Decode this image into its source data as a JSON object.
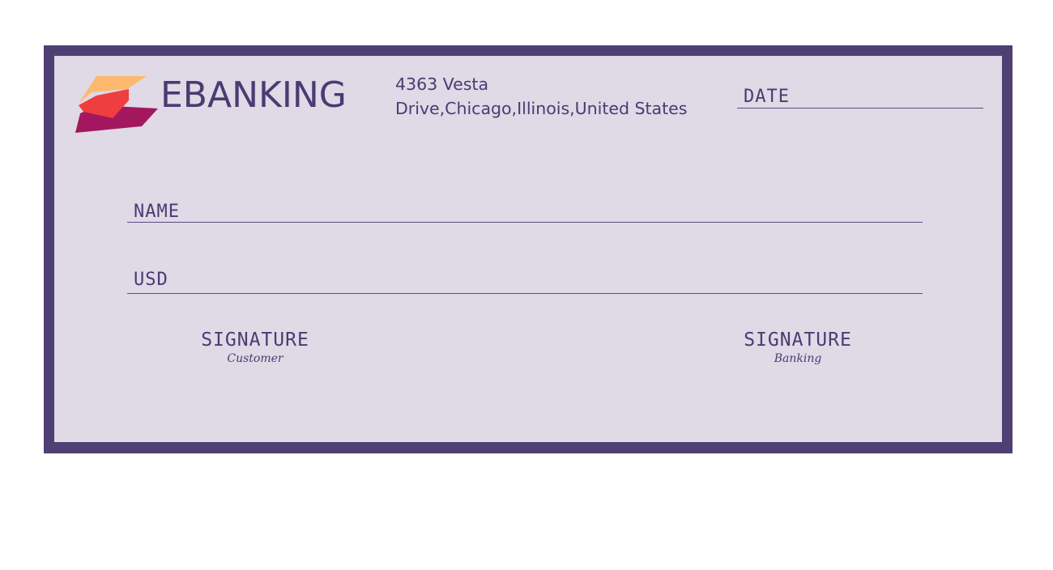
{
  "brand": {
    "name": "EBANKING",
    "colors": {
      "frame": "#4f4073",
      "paper": "#e0d9e6",
      "text": "#4a3b72",
      "logo_top": "#fdb96d",
      "logo_mid": "#ee3e3e",
      "logo_bottom": "#a3175f"
    },
    "logo_icon": "stacked-layers-logo"
  },
  "address": {
    "line1": "4363 Vesta",
    "line2": "Drive,Chicago,Illinois,United States"
  },
  "fields": {
    "date_label": "DATE",
    "name_label": "NAME",
    "amount_label": "USD"
  },
  "signatures": {
    "customer": {
      "title": "SIGNATURE",
      "subtitle": "Customer"
    },
    "bank": {
      "title": "SIGNATURE",
      "subtitle": "Banking"
    }
  }
}
